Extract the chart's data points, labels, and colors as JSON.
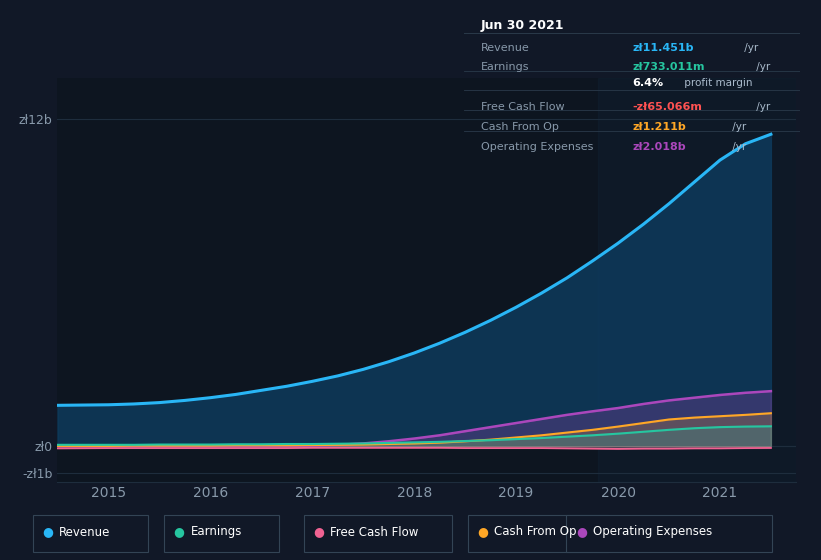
{
  "bg_color": "#111827",
  "plot_bg_color": "#0d1520",
  "grid_color": "#1e2d3d",
  "title_box_bg": "#0a0e17",
  "title_box_border": "#2a3a4a",
  "years": [
    2014.5,
    2015.0,
    2015.25,
    2015.5,
    2015.75,
    2016.0,
    2016.25,
    2016.5,
    2016.75,
    2017.0,
    2017.25,
    2017.5,
    2017.75,
    2018.0,
    2018.25,
    2018.5,
    2018.75,
    2019.0,
    2019.25,
    2019.5,
    2019.75,
    2020.0,
    2020.25,
    2020.5,
    2020.75,
    2021.0,
    2021.25,
    2021.5
  ],
  "revenue": [
    1.5,
    1.52,
    1.55,
    1.6,
    1.68,
    1.78,
    1.9,
    2.05,
    2.2,
    2.38,
    2.58,
    2.82,
    3.1,
    3.42,
    3.78,
    4.18,
    4.62,
    5.1,
    5.62,
    6.18,
    6.8,
    7.45,
    8.15,
    8.9,
    9.7,
    10.5,
    11.1,
    11.45
  ],
  "earnings": [
    0.05,
    0.05,
    0.05,
    0.06,
    0.06,
    0.06,
    0.07,
    0.07,
    0.08,
    0.08,
    0.09,
    0.1,
    0.12,
    0.14,
    0.16,
    0.19,
    0.22,
    0.26,
    0.3,
    0.35,
    0.4,
    0.46,
    0.53,
    0.6,
    0.66,
    0.7,
    0.72,
    0.73
  ],
  "free_cash_flow": [
    -0.08,
    -0.07,
    -0.07,
    -0.07,
    -0.07,
    -0.07,
    -0.07,
    -0.07,
    -0.07,
    -0.06,
    -0.06,
    -0.06,
    -0.06,
    -0.06,
    -0.06,
    -0.07,
    -0.07,
    -0.07,
    -0.07,
    -0.08,
    -0.09,
    -0.1,
    -0.09,
    -0.09,
    -0.08,
    -0.08,
    -0.07,
    -0.065
  ],
  "cash_from_op": [
    0.01,
    0.01,
    0.02,
    0.02,
    0.02,
    0.02,
    0.03,
    0.03,
    0.03,
    0.04,
    0.05,
    0.06,
    0.08,
    0.1,
    0.13,
    0.18,
    0.24,
    0.32,
    0.4,
    0.5,
    0.6,
    0.72,
    0.85,
    0.98,
    1.05,
    1.1,
    1.15,
    1.21
  ],
  "op_expenses": [
    0.0,
    0.0,
    0.0,
    0.0,
    0.0,
    0.0,
    0.0,
    0.0,
    0.0,
    0.02,
    0.05,
    0.1,
    0.18,
    0.28,
    0.4,
    0.55,
    0.7,
    0.85,
    1.0,
    1.15,
    1.28,
    1.4,
    1.55,
    1.68,
    1.78,
    1.88,
    1.96,
    2.02
  ],
  "revenue_color": "#29b6f6",
  "earnings_color": "#26c6a0",
  "fcf_color": "#f06292",
  "cfop_color": "#ffa726",
  "opex_color": "#ab47bc",
  "revenue_fill_color": "#0d3a5c",
  "ylim_min": -1.3,
  "ylim_max": 13.5,
  "xlim_min": 2014.5,
  "xlim_max": 2021.75,
  "ytick_vals": [
    -1,
    0,
    12
  ],
  "ytick_labels": [
    "-zł1b",
    "zł0",
    "zł12b"
  ],
  "ytick_mid_val": 0,
  "xticks": [
    2015,
    2016,
    2017,
    2018,
    2019,
    2020,
    2021
  ],
  "tick_color": "#8899aa",
  "legend": [
    {
      "label": "Revenue",
      "color": "#29b6f6"
    },
    {
      "label": "Earnings",
      "color": "#26c6a0"
    },
    {
      "label": "Free Cash Flow",
      "color": "#f06292"
    },
    {
      "label": "Cash From Op",
      "color": "#ffa726"
    },
    {
      "label": "Operating Expenses",
      "color": "#ab47bc"
    }
  ],
  "infobox": {
    "date": "Jun 30 2021",
    "rows": [
      {
        "label": "Revenue",
        "value": "zł11.451b",
        "suffix": " /yr",
        "value_color": "#29b6f6",
        "sep_after": false
      },
      {
        "label": "Earnings",
        "value": "zł733.011m",
        "suffix": " /yr",
        "value_color": "#26c6a0",
        "sep_after": false
      },
      {
        "label": "",
        "value": "6.4%",
        "suffix": " profit margin",
        "value_color": "#ffffff",
        "sep_after": true
      },
      {
        "label": "Free Cash Flow",
        "value": "-zł65.066m",
        "suffix": " /yr",
        "value_color": "#ff5252",
        "sep_after": false
      },
      {
        "label": "Cash From Op",
        "value": "zł1.211b",
        "suffix": " /yr",
        "value_color": "#ffa726",
        "sep_after": false
      },
      {
        "label": "Operating Expenses",
        "value": "zł2.018b",
        "suffix": " /yr",
        "value_color": "#ab47bc",
        "sep_after": false
      }
    ]
  }
}
